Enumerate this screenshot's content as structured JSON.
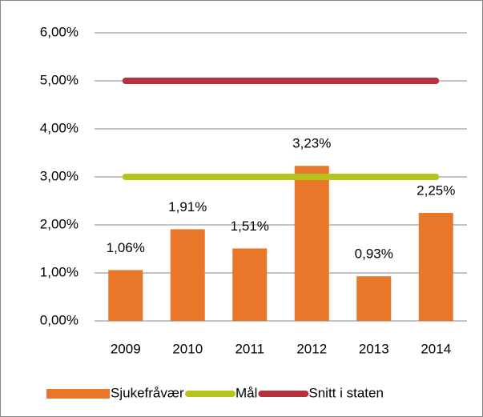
{
  "chart_data": {
    "type": "bar",
    "categories": [
      "2009",
      "2010",
      "2011",
      "2012",
      "2013",
      "2014"
    ],
    "series": [
      {
        "name": "Sjukefråvær",
        "type": "bar",
        "color": "#e8772a",
        "values": [
          1.06,
          1.91,
          1.51,
          3.23,
          0.93,
          2.25
        ],
        "value_labels": [
          "1,06%",
          "1,91%",
          "1,51%",
          "3,23%",
          "0,93%",
          "2,25%"
        ]
      },
      {
        "name": "Mål",
        "type": "line",
        "color": "#b7c41c",
        "values": [
          3.0,
          3.0,
          3.0,
          3.0,
          3.0,
          3.0
        ]
      },
      {
        "name": "Snitt i staten",
        "type": "line",
        "color": "#b5313d",
        "values": [
          5.0,
          5.0,
          5.0,
          5.0,
          5.0,
          5.0
        ]
      }
    ],
    "ylim": [
      0,
      6
    ],
    "yticks": [
      {
        "value": 0,
        "label": "0,00%"
      },
      {
        "value": 1,
        "label": "1,00%"
      },
      {
        "value": 2,
        "label": "2,00%"
      },
      {
        "value": 3,
        "label": "3,00%"
      },
      {
        "value": 4,
        "label": "4,00%"
      },
      {
        "value": 5,
        "label": "5,00%"
      },
      {
        "value": 6,
        "label": "6,00%"
      }
    ],
    "grid": true,
    "legend": "bottom"
  }
}
